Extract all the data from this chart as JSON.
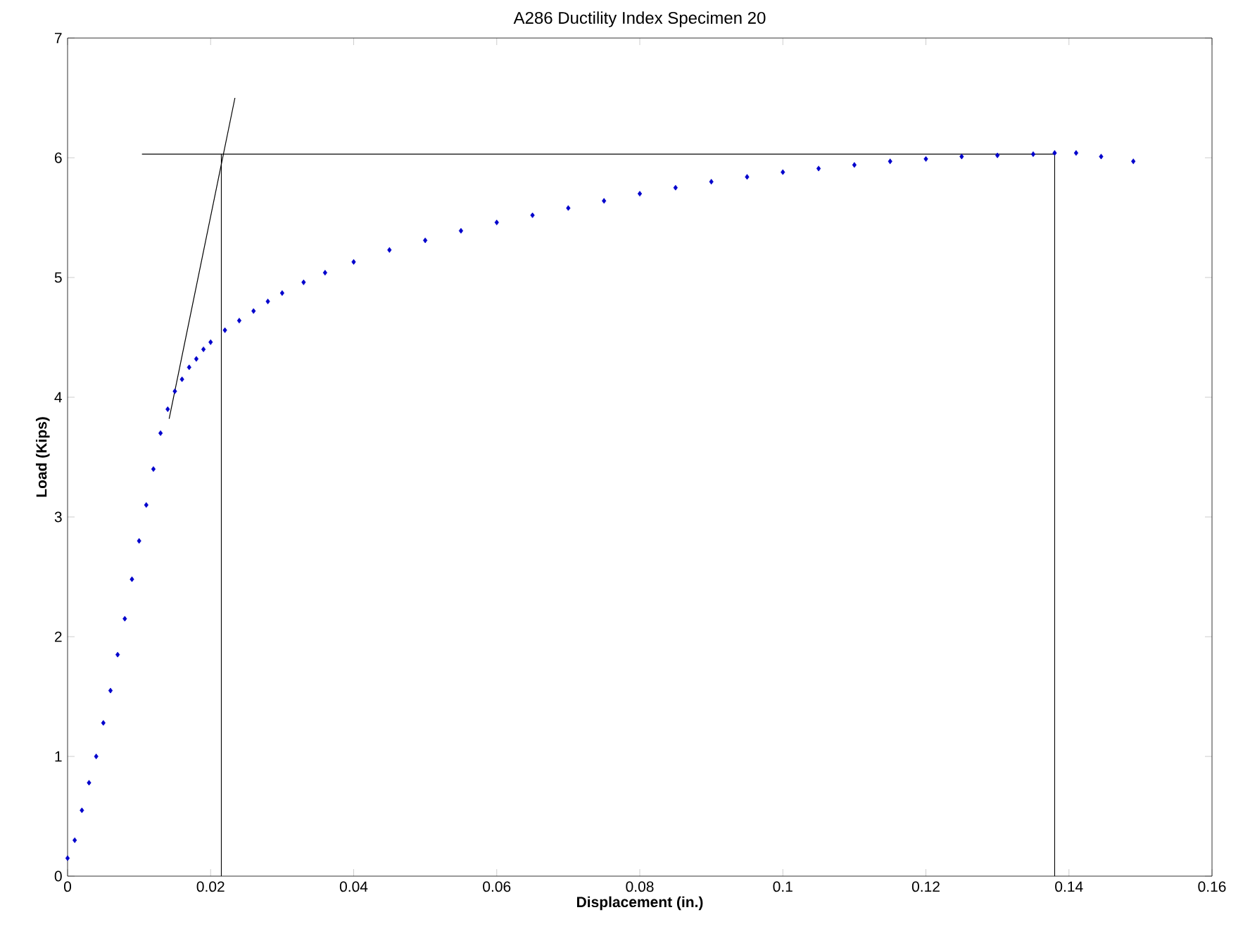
{
  "chart_data": {
    "type": "scatter",
    "title": "A286 Ductility Index Specimen 20",
    "xlabel": "Displacement (in.)",
    "ylabel": "Load (Kips)",
    "xlim": [
      0,
      0.16
    ],
    "ylim": [
      0,
      7
    ],
    "xticks": [
      0,
      0.02,
      0.04,
      0.06,
      0.08,
      0.1,
      0.12,
      0.14,
      0.16
    ],
    "yticks": [
      0,
      1,
      2,
      3,
      4,
      5,
      6,
      7
    ],
    "grid": false,
    "series": [
      {
        "marker": "diamond",
        "color": "#0000cc",
        "x": [
          0,
          0.001,
          0.002,
          0.003,
          0.004,
          0.005,
          0.006,
          0.007,
          0.008,
          0.009,
          0.01,
          0.011,
          0.012,
          0.013,
          0.014,
          0.015,
          0.016,
          0.017,
          0.018,
          0.019,
          0.02,
          0.022,
          0.024,
          0.026,
          0.028,
          0.03,
          0.033,
          0.036,
          0.04,
          0.045,
          0.05,
          0.055,
          0.06,
          0.065,
          0.07,
          0.075,
          0.08,
          0.085,
          0.09,
          0.095,
          0.1,
          0.105,
          0.11,
          0.115,
          0.12,
          0.125,
          0.13,
          0.135,
          0.138,
          0.141,
          0.1445,
          0.149
        ],
        "values": [
          0.15,
          0.3,
          0.55,
          0.78,
          1.0,
          1.28,
          1.55,
          1.85,
          2.15,
          2.48,
          2.8,
          3.1,
          3.4,
          3.7,
          3.9,
          4.05,
          4.15,
          4.25,
          4.32,
          4.4,
          4.46,
          4.56,
          4.64,
          4.72,
          4.8,
          4.87,
          4.96,
          5.04,
          5.13,
          5.23,
          5.31,
          5.39,
          5.46,
          5.52,
          5.58,
          5.64,
          5.7,
          5.75,
          5.8,
          5.84,
          5.88,
          5.91,
          5.94,
          5.97,
          5.99,
          6.01,
          6.02,
          6.03,
          6.04,
          6.04,
          6.01,
          5.97
        ]
      },
      {
        "type": "line",
        "marker": "none",
        "color": "#000000",
        "x": [
          0.0104,
          0.138
        ],
        "values": [
          6.03,
          6.03
        ]
      },
      {
        "type": "line",
        "marker": "none",
        "color": "#000000",
        "x": [
          0.0215,
          0.0215
        ],
        "values": [
          0,
          6.03
        ]
      },
      {
        "type": "line",
        "marker": "none",
        "color": "#000000",
        "x": [
          0.138,
          0.138
        ],
        "values": [
          0,
          6.03
        ]
      },
      {
        "type": "line",
        "marker": "none",
        "color": "#000000",
        "x": [
          0.0142,
          0.0234
        ],
        "values": [
          3.82,
          6.5
        ]
      }
    ]
  }
}
